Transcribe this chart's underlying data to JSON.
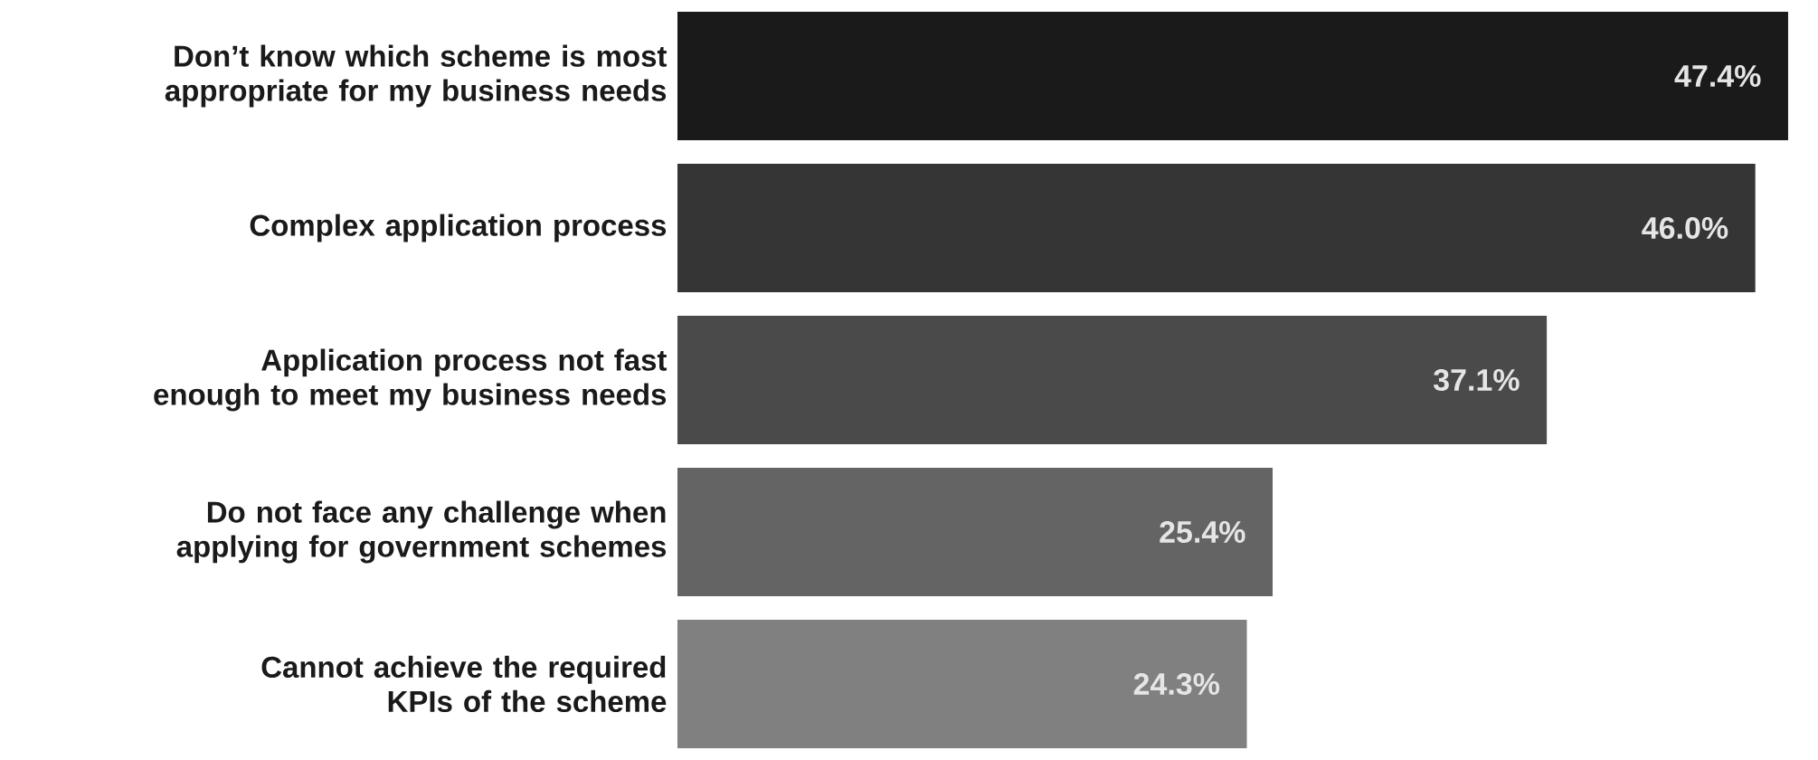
{
  "chart_data": {
    "type": "bar",
    "orientation": "horizontal",
    "categories": [
      "Don’t know which scheme is most appropriate for my business needs",
      "Complex application process",
      "Application process not fast enough to meet my business needs",
      "Do not face any challenge when applying for government schemes",
      "Cannot achieve the required KPIs of the scheme"
    ],
    "values": [
      47.4,
      46.0,
      37.1,
      25.4,
      24.3
    ],
    "colors": [
      "#1a1a1a",
      "#353535",
      "#4a4a4a",
      "#646464",
      "#808080"
    ],
    "value_labels": [
      "47.4%",
      "46.0%",
      "37.1%",
      "25.4%",
      "24.3%"
    ]
  }
}
